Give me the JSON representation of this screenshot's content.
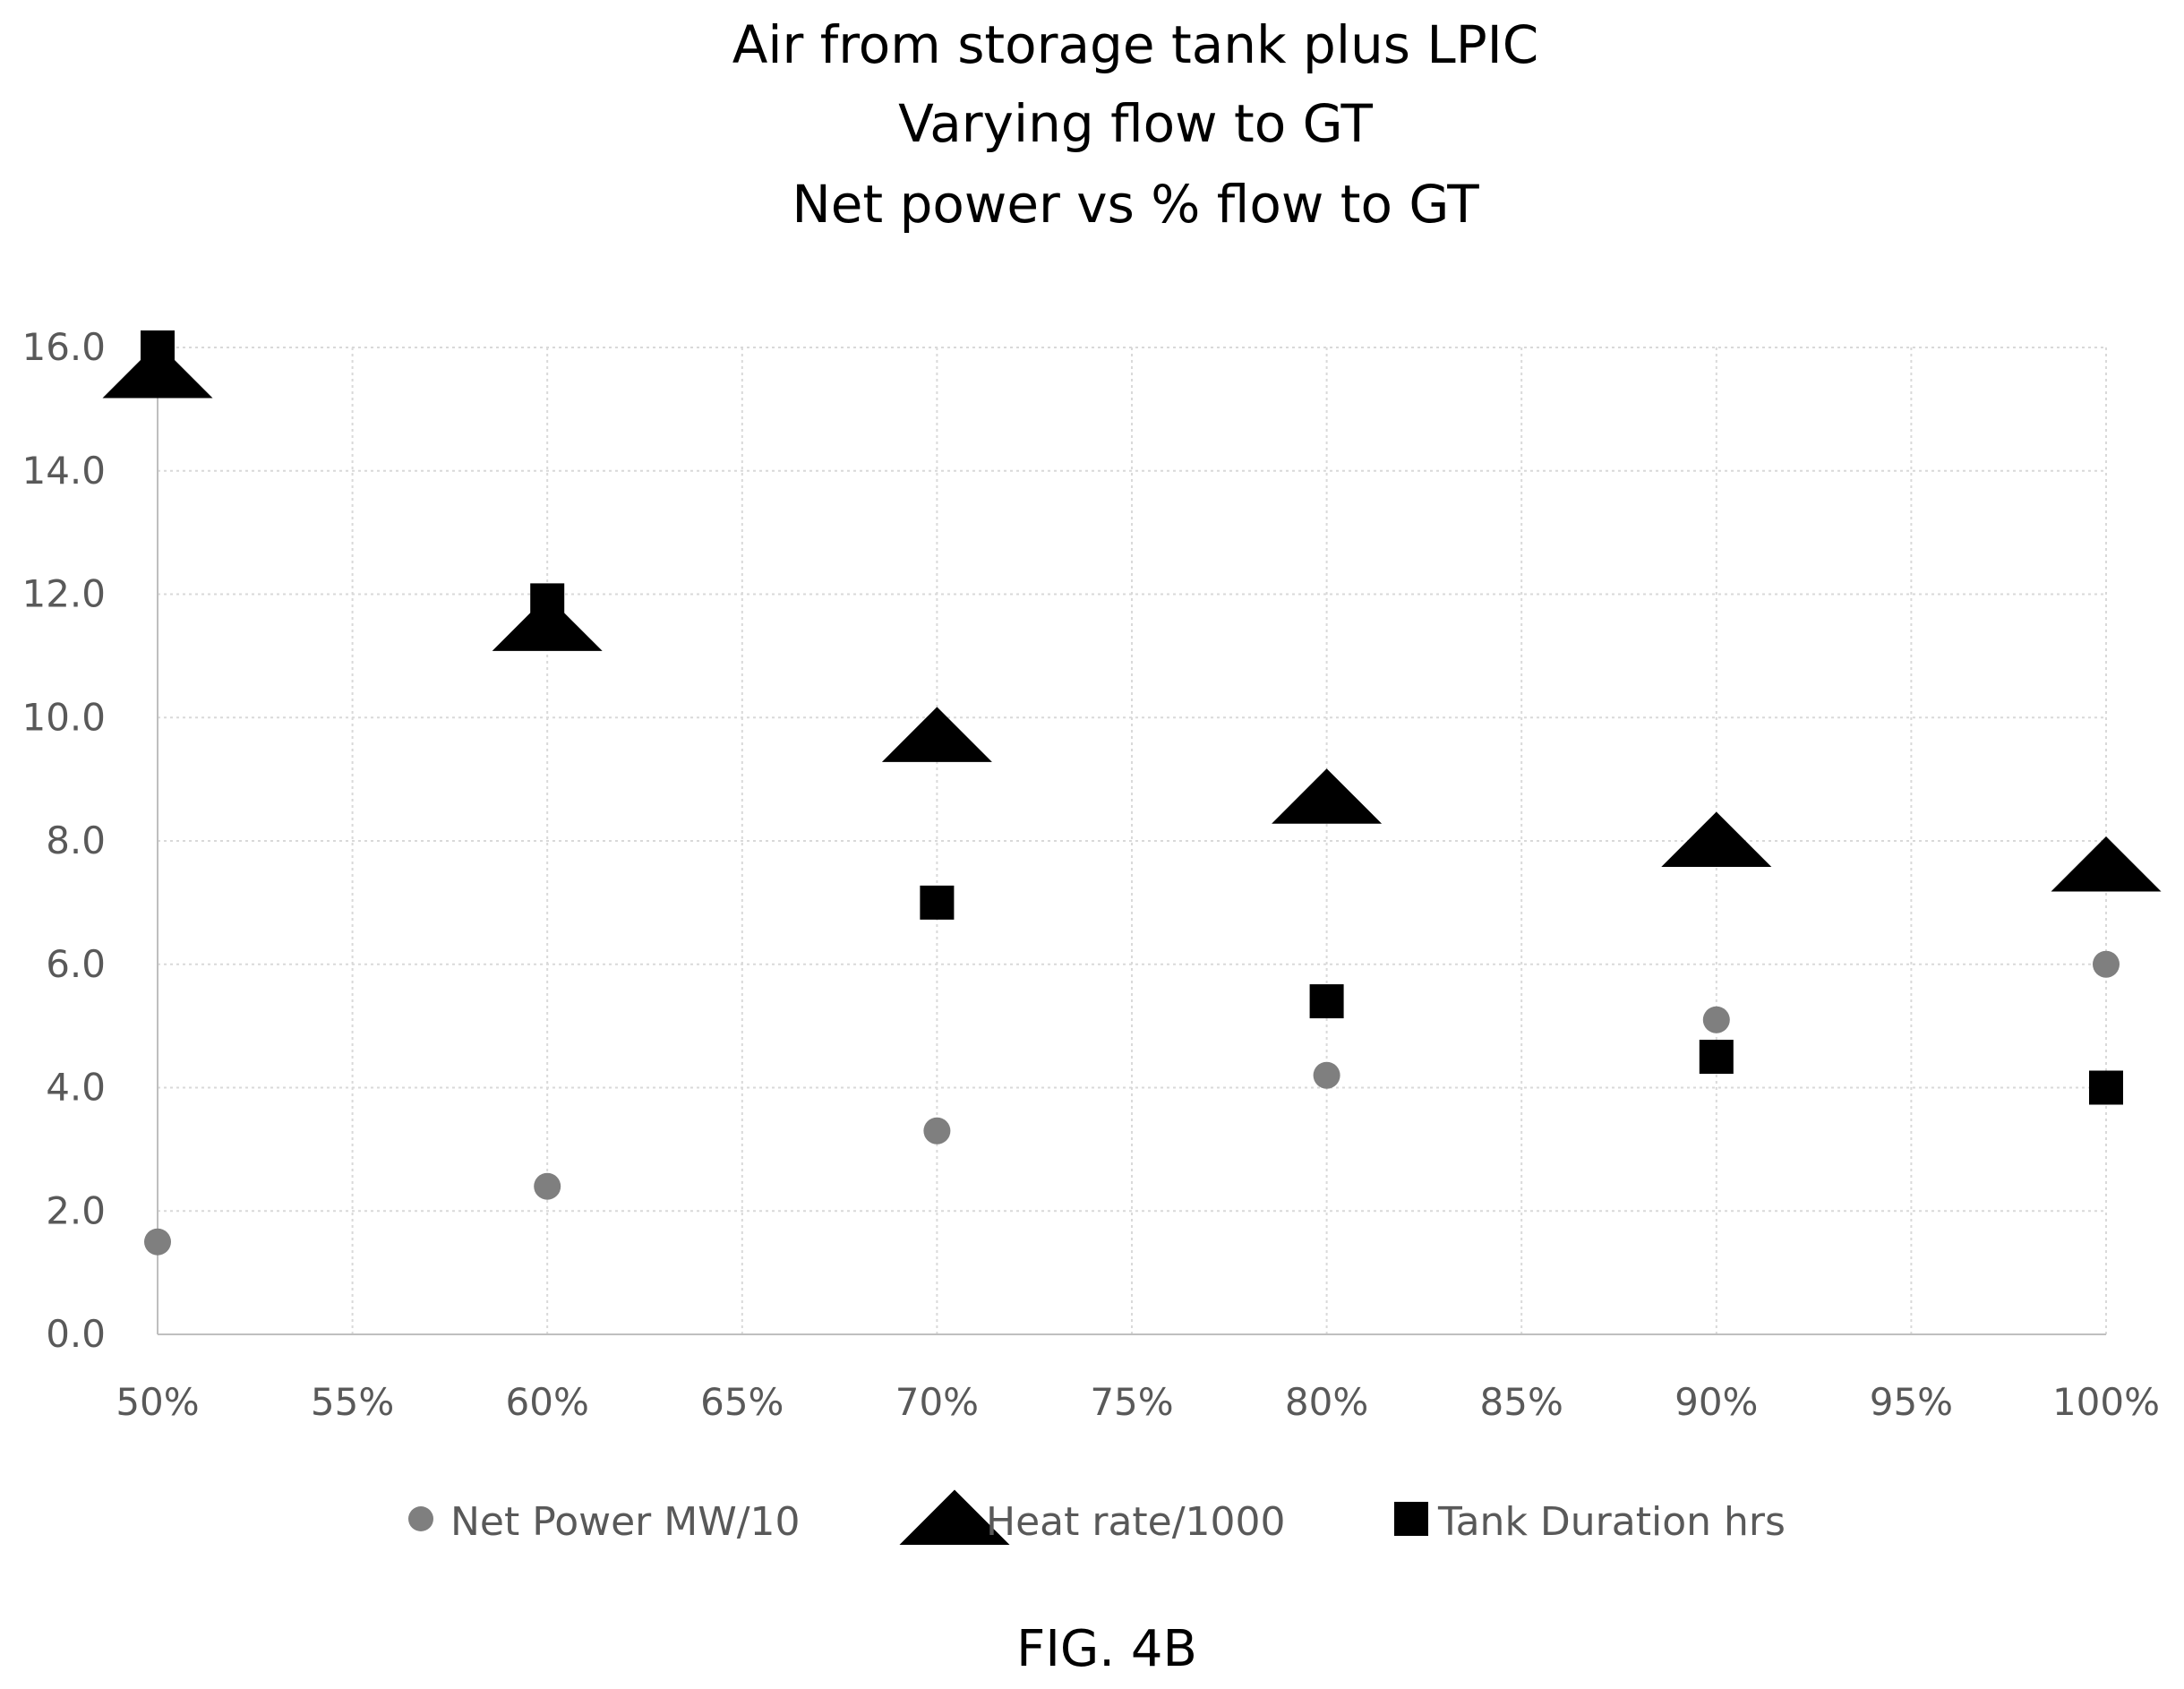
{
  "chart_data": {
    "type": "scatter",
    "title_lines": [
      "Air from storage tank plus LPIC",
      "Varying flow to GT",
      "Net power vs % flow to GT"
    ],
    "xlabel": "",
    "ylabel": "",
    "xlim": [
      0.5,
      1.0
    ],
    "ylim": [
      0,
      16
    ],
    "x_ticks": [
      0.5,
      0.55,
      0.6,
      0.65,
      0.7,
      0.75,
      0.8,
      0.85,
      0.9,
      0.95,
      1.0
    ],
    "x_tick_labels": [
      "50%",
      "55%",
      "60%",
      "65%",
      "70%",
      "75%",
      "80%",
      "85%",
      "90%",
      "95%",
      "100%"
    ],
    "y_ticks": [
      0,
      2,
      4,
      6,
      8,
      10,
      12,
      14,
      16
    ],
    "y_tick_labels": [
      "0.0",
      "2.0",
      "4.0",
      "6.0",
      "8.0",
      "10.0",
      "12.0",
      "14.0",
      "16.0"
    ],
    "grid": true,
    "legend_position": "bottom",
    "series": [
      {
        "name": "Net Power MW/10",
        "marker": "circle",
        "color": "#7f7f7f",
        "points": [
          {
            "x": 0.5,
            "y": 1.5
          },
          {
            "x": 0.6,
            "y": 2.4
          },
          {
            "x": 0.7,
            "y": 3.3
          },
          {
            "x": 0.8,
            "y": 4.2
          },
          {
            "x": 0.9,
            "y": 5.1
          },
          {
            "x": 1.0,
            "y": 6.0
          }
        ]
      },
      {
        "name": "Heat rate/1000",
        "marker": "triangle",
        "color": "#000000",
        "points": [
          {
            "x": 0.5,
            "y": 15.6
          },
          {
            "x": 0.6,
            "y": 11.5
          },
          {
            "x": 0.7,
            "y": 9.7
          },
          {
            "x": 0.8,
            "y": 8.7
          },
          {
            "x": 0.9,
            "y": 8.0
          },
          {
            "x": 1.0,
            "y": 7.6
          }
        ]
      },
      {
        "name": "Tank Duration hrs",
        "marker": "square",
        "color": "#000000",
        "points": [
          {
            "x": 0.5,
            "y": 16.0
          },
          {
            "x": 0.6,
            "y": 11.9
          },
          {
            "x": 0.7,
            "y": 7.0
          },
          {
            "x": 0.8,
            "y": 5.4
          },
          {
            "x": 0.9,
            "y": 4.5
          },
          {
            "x": 1.0,
            "y": 4.0
          }
        ]
      }
    ]
  },
  "figure": {
    "caption": "FIG. 4B"
  },
  "colors": {
    "background": "#ffffff",
    "grid": "#d9d9d9",
    "tick_text": "#595959",
    "title_text": "#000000"
  }
}
